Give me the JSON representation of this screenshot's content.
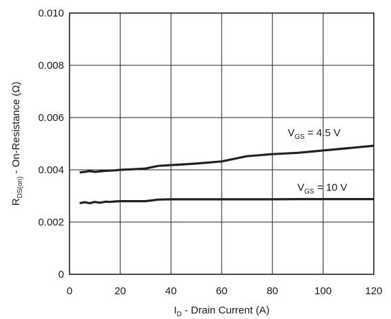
{
  "chart_data": {
    "type": "line",
    "xlabel": "I",
    "xlabel_sub": "D",
    "xlabel_rest": " - Drain Current (A)",
    "ylabel": "R",
    "ylabel_sub": "DS(on)",
    "ylabel_rest": " - On-Resistance (Ω)",
    "xlim": [
      0,
      120
    ],
    "ylim": [
      0,
      0.01
    ],
    "grid": true,
    "x_ticks": [
      0,
      20,
      40,
      60,
      80,
      100,
      120
    ],
    "x_tick_labels": [
      "0",
      "20",
      "40",
      "60",
      "80",
      "100",
      "120"
    ],
    "y_ticks": [
      0,
      0.002,
      0.004,
      0.006,
      0.008,
      0.01
    ],
    "y_tick_labels": [
      "0",
      "0.002",
      "0.004",
      "0.006",
      "0.008",
      "0.010"
    ],
    "series": [
      {
        "name": "VGS = 4.5 V",
        "label": {
          "main": "V",
          "sub": "GS",
          "rest": " = 4.5 V"
        },
        "x": [
          4,
          6,
          8,
          10,
          12,
          14,
          16,
          18,
          20,
          25,
          30,
          35,
          40,
          50,
          60,
          70,
          80,
          90,
          100,
          110,
          120
        ],
        "y": [
          0.0039,
          0.00392,
          0.00395,
          0.00392,
          0.00394,
          0.00396,
          0.00397,
          0.00398,
          0.004,
          0.00402,
          0.00405,
          0.00415,
          0.00418,
          0.00424,
          0.00432,
          0.00452,
          0.0046,
          0.00465,
          0.00474,
          0.00483,
          0.00492
        ]
      },
      {
        "name": "VGS = 10 V",
        "label": {
          "main": "V",
          "sub": "GS",
          "rest": " = 10 V"
        },
        "x": [
          4,
          6,
          8,
          10,
          12,
          14,
          16,
          18,
          20,
          25,
          30,
          35,
          40,
          50,
          60,
          70,
          80,
          90,
          100,
          110,
          120
        ],
        "y": [
          0.00272,
          0.00276,
          0.00272,
          0.00277,
          0.00274,
          0.00278,
          0.00277,
          0.00279,
          0.0028,
          0.0028,
          0.0028,
          0.00286,
          0.00287,
          0.00287,
          0.00287,
          0.00287,
          0.00287,
          0.00288,
          0.00288,
          0.00288,
          0.00288
        ]
      }
    ]
  }
}
